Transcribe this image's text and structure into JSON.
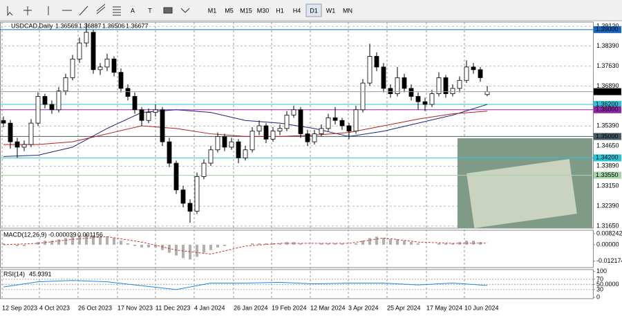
{
  "toolbar": {
    "text_tools": [
      "A",
      "T"
    ],
    "timeframes": [
      "M1",
      "M5",
      "M15",
      "M30",
      "H1",
      "H4",
      "D1",
      "W1",
      "MN"
    ],
    "active": "D1"
  },
  "chart_data": [
    {
      "type": "candlestick",
      "title": "USDCAD,Daily",
      "bull_color": "#ffffff",
      "bear_color": "#000000",
      "xlim": [
        -0.5,
        85.3
      ],
      "ylim": [
        1.3157,
        1.3928
      ],
      "grid": true,
      "xticks": [
        {
          "value": -0.2,
          "label": "12 Sep 2023"
        },
        {
          "value": 5.2,
          "label": "4 Oct 2023"
        },
        {
          "value": 10.8,
          "label": "26 Oct 2023"
        },
        {
          "value": 16.5,
          "label": "17 Nov 2023"
        },
        {
          "value": 22,
          "label": "11 Dec 2023"
        },
        {
          "value": 27.6,
          "label": "4 Jan 2024"
        },
        {
          "value": 33.3,
          "label": "26 Jan 2024"
        },
        {
          "value": 38.8,
          "label": "19 Feb 2024"
        },
        {
          "value": 44.4,
          "label": "12 Mar 2024"
        },
        {
          "value": 49.9,
          "label": "3 Apr 2024"
        },
        {
          "value": 55.5,
          "label": "25 Apr 2024"
        },
        {
          "value": 61.2,
          "label": "17 May 2024"
        },
        {
          "value": 66.7,
          "label": "10 Jun 2024"
        }
      ],
      "yticks": [
        {
          "value": 1.3912,
          "label": "1.39120"
        },
        {
          "value": 1.3839,
          "label": "1.38390"
        },
        {
          "value": 1.3763,
          "label": "1.37630"
        },
        {
          "value": 1.3689,
          "label": "1.36890"
        },
        {
          "value": 1.3539,
          "label": "1.35390"
        },
        {
          "value": 1.3465,
          "label": "1.34650"
        },
        {
          "value": 1.3389,
          "label": "1.33890"
        },
        {
          "value": 1.3315,
          "label": "1.33150"
        },
        {
          "value": 1.3239,
          "label": "1.32390"
        },
        {
          "value": 1.3165,
          "label": "1.31650"
        }
      ],
      "candles": [
        [
          1.356,
          1.3575,
          1.3535,
          1.355
        ],
        [
          1.355,
          1.3562,
          1.3455,
          1.348
        ],
        [
          1.348,
          1.3495,
          1.342,
          1.346
        ],
        [
          1.346,
          1.3485,
          1.3445,
          1.347
        ],
        [
          1.347,
          1.3565,
          1.346,
          1.355
        ],
        [
          1.355,
          1.3665,
          1.354,
          1.365
        ],
        [
          1.365,
          1.366,
          1.3605,
          1.362
        ],
        [
          1.362,
          1.3635,
          1.3585,
          1.36
        ],
        [
          1.36,
          1.3685,
          1.359,
          1.367
        ],
        [
          1.367,
          1.3735,
          1.3655,
          1.372
        ],
        [
          1.372,
          1.3805,
          1.371,
          1.379
        ],
        [
          1.379,
          1.387,
          1.3775,
          1.385
        ],
        [
          1.385,
          1.3925,
          1.3835,
          1.389
        ],
        [
          1.389,
          1.39,
          1.3735,
          1.375
        ],
        [
          1.375,
          1.3775,
          1.373,
          1.376
        ],
        [
          1.376,
          1.381,
          1.3745,
          1.379
        ],
        [
          1.379,
          1.38,
          1.3725,
          1.374
        ],
        [
          1.374,
          1.3755,
          1.3665,
          1.368
        ],
        [
          1.368,
          1.3695,
          1.3635,
          1.365
        ],
        [
          1.365,
          1.3665,
          1.3585,
          1.36
        ],
        [
          1.36,
          1.361,
          1.354,
          1.356
        ],
        [
          1.356,
          1.3605,
          1.355,
          1.359
        ],
        [
          1.359,
          1.362,
          1.3575,
          1.36
        ],
        [
          1.36,
          1.361,
          1.3465,
          1.348
        ],
        [
          1.348,
          1.3495,
          1.3385,
          1.34
        ],
        [
          1.34,
          1.341,
          1.3285,
          1.33
        ],
        [
          1.33,
          1.3315,
          1.3235,
          1.325
        ],
        [
          1.325,
          1.3265,
          1.3177,
          1.322
        ],
        [
          1.322,
          1.3365,
          1.321,
          1.335
        ],
        [
          1.335,
          1.3415,
          1.334,
          1.34
        ],
        [
          1.34,
          1.3465,
          1.339,
          1.345
        ],
        [
          1.345,
          1.3515,
          1.344,
          1.35
        ],
        [
          1.35,
          1.351,
          1.3445,
          1.346
        ],
        [
          1.346,
          1.3495,
          1.345,
          1.348
        ],
        [
          1.348,
          1.349,
          1.34,
          1.342
        ],
        [
          1.342,
          1.3465,
          1.341,
          1.345
        ],
        [
          1.345,
          1.3535,
          1.344,
          1.352
        ],
        [
          1.352,
          1.356,
          1.3505,
          1.354
        ],
        [
          1.354,
          1.355,
          1.3475,
          1.349
        ],
        [
          1.349,
          1.3535,
          1.348,
          1.352
        ],
        [
          1.352,
          1.3545,
          1.3505,
          1.353
        ],
        [
          1.353,
          1.3595,
          1.352,
          1.358
        ],
        [
          1.358,
          1.3615,
          1.357,
          1.36
        ],
        [
          1.36,
          1.361,
          1.3495,
          1.351
        ],
        [
          1.351,
          1.3525,
          1.3465,
          1.348
        ],
        [
          1.348,
          1.3525,
          1.347,
          1.351
        ],
        [
          1.351,
          1.3545,
          1.35,
          1.353
        ],
        [
          1.353,
          1.3585,
          1.352,
          1.357
        ],
        [
          1.357,
          1.361,
          1.3545,
          1.356
        ],
        [
          1.356,
          1.357,
          1.3525,
          1.354
        ],
        [
          1.354,
          1.355,
          1.349,
          1.352
        ],
        [
          1.352,
          1.3615,
          1.351,
          1.36
        ],
        [
          1.36,
          1.3715,
          1.359,
          1.37
        ],
        [
          1.37,
          1.3847,
          1.369,
          1.38
        ],
        [
          1.38,
          1.3815,
          1.3745,
          1.376
        ],
        [
          1.376,
          1.3775,
          1.3665,
          1.368
        ],
        [
          1.368,
          1.3695,
          1.3645,
          1.366
        ],
        [
          1.366,
          1.376,
          1.365,
          1.372
        ],
        [
          1.372,
          1.3735,
          1.3665,
          1.368
        ],
        [
          1.368,
          1.3695,
          1.3635,
          1.365
        ],
        [
          1.365,
          1.3665,
          1.36,
          1.363
        ],
        [
          1.363,
          1.3645,
          1.3595,
          1.362
        ],
        [
          1.362,
          1.3675,
          1.361,
          1.366
        ],
        [
          1.366,
          1.374,
          1.365,
          1.372
        ],
        [
          1.372,
          1.373,
          1.3645,
          1.366
        ],
        [
          1.366,
          1.3695,
          1.365,
          1.368
        ],
        [
          1.368,
          1.3725,
          1.3665,
          1.371
        ],
        [
          1.371,
          1.3785,
          1.37,
          1.376
        ],
        [
          1.376,
          1.3775,
          1.3735,
          1.375
        ],
        [
          1.375,
          1.376,
          1.3705,
          1.372
        ],
        [
          1.36569,
          1.36887,
          1.36506,
          1.36677
        ]
      ],
      "moving_averages": [
        {
          "color": "#1a237e",
          "x": [
            0,
            5,
            10,
            15,
            20,
            25,
            30,
            35,
            40,
            45,
            50,
            55,
            60,
            65,
            70
          ],
          "values": [
            1.3425,
            1.343,
            1.346,
            1.353,
            1.359,
            1.36,
            1.359,
            1.356,
            1.355,
            1.353,
            1.35,
            1.352,
            1.355,
            1.358,
            1.362
          ]
        },
        {
          "color": "#b71c1c",
          "x": [
            0,
            5,
            10,
            15,
            20,
            25,
            30,
            35,
            40,
            45,
            50,
            55,
            60,
            65,
            70
          ],
          "values": [
            1.347,
            1.347,
            1.348,
            1.351,
            1.354,
            1.353,
            1.351,
            1.35,
            1.35,
            1.3505,
            1.3515,
            1.354,
            1.3565,
            1.3585,
            1.3595
          ]
        }
      ],
      "levels": [
        {
          "value": 1.39,
          "label": "1.39000",
          "color": "#1565c0"
        },
        {
          "value": 1.362,
          "label": "1.36200",
          "color": "#26c6da"
        },
        {
          "value": 1.36,
          "label": "1.36000",
          "color": "#8e24aa"
        },
        {
          "value": 1.35,
          "label": "1.35000",
          "color": "#455a64"
        },
        {
          "value": 1.342,
          "label": "1.34200",
          "color": "#26c6da"
        },
        {
          "value": 1.3355,
          "label": "1.33550",
          "color": "#a5d6a7"
        }
      ]
    },
    {
      "type": "macd",
      "title": "MACD(12,26,9)",
      "xlim": [
        -0.5,
        85.3
      ],
      "ylim": [
        -0.017,
        0.0108
      ],
      "color": "#b0b0b0",
      "signal_color": "#d32f2f",
      "yticks": [
        0.008242,
        {
          "value": 0,
          "label": "0.00000"
        },
        -0.012174
      ],
      "values": [
        0.001,
        0,
        -0.001,
        -0.001,
        0,
        0.002,
        0.003,
        0.003,
        0.004,
        0.005,
        0.006,
        0.007,
        0.008,
        0.007,
        0.006,
        0.006,
        0.005,
        0.003,
        0.001,
        -0.001,
        -0.002,
        -0.002,
        -0.002,
        -0.004,
        -0.006,
        -0.008,
        -0.01,
        -0.011,
        -0.009,
        -0.006,
        -0.004,
        -0.002,
        -0.001,
        0,
        0,
        0,
        0.001,
        0.001,
        0.001,
        0.001,
        0.001,
        0.002,
        0.002,
        0.001,
        0,
        0,
        0.001,
        0.001,
        0.001,
        0.001,
        0,
        0.001,
        0.003,
        0.005,
        0.006,
        0.005,
        0.004,
        0.004,
        0.003,
        0.002,
        0.001,
        0,
        0,
        0.001,
        0.001,
        0.001,
        0.002,
        0.003,
        0.003,
        0.002,
        -3.9e-05
      ],
      "signal": {
        "x": [
          0,
          5,
          10,
          15,
          20,
          25,
          30,
          35,
          40,
          45,
          50,
          55,
          60,
          65,
          70
        ],
        "values": [
          0,
          0.001,
          0.004,
          0.006,
          0.002,
          -0.004,
          -0.007,
          -0.001,
          0.001,
          0.001,
          0.001,
          0.005,
          0.002,
          0.001,
          0.001156
        ]
      }
    },
    {
      "type": "rsi",
      "title": "RSI(14)",
      "xlim": [
        -0.5,
        85.3
      ],
      "ylim": [
        -5,
        107
      ],
      "color": "#1e88e5",
      "yticks": [
        100,
        70,
        {
          "value": 50,
          "label": "50.0000"
        },
        30,
        0
      ],
      "x": [
        0,
        5,
        10,
        15,
        20,
        25,
        30,
        35,
        40,
        45,
        50,
        55,
        60,
        65,
        70
      ],
      "values": [
        40,
        60,
        65,
        60,
        45,
        30,
        55,
        55,
        58,
        52,
        55,
        55,
        48,
        55,
        45.9391
      ]
    }
  ]
}
